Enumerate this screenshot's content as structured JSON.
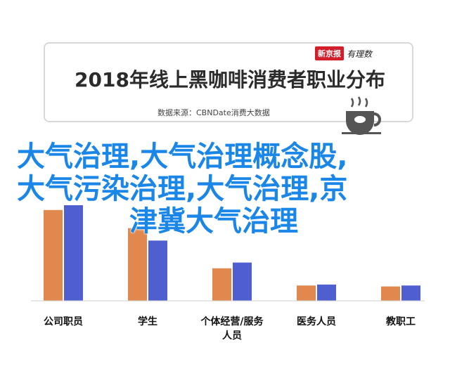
{
  "header": {
    "logo_box": "新京报",
    "logo_script": "有理数"
  },
  "watermark": {
    "line1": "大气治理,大气治理概念股,",
    "line2": "大气污染治理,大气治理,京",
    "line3": "津冀大气治理"
  },
  "chart_data": {
    "type": "bar",
    "title": "2018年线上黑咖啡消费者职业分布",
    "source": "数据来源：CBNDate消费大数据",
    "categories": [
      "公司职员",
      "学生",
      "个体经营/服务人员",
      "医务人员",
      "教职工"
    ],
    "category_lines": [
      [
        "公司职员"
      ],
      [
        "学生"
      ],
      [
        "个体经营/服务",
        "人员"
      ],
      [
        "医务人员"
      ],
      [
        "教职工"
      ]
    ],
    "series": [
      {
        "color": "#e1884e",
        "values": [
          0.95,
          0.76,
          0.34,
          0.16,
          0.15
        ]
      },
      {
        "color": "#4f5fcf",
        "values": [
          1.0,
          0.63,
          0.4,
          0.17,
          0.16
        ]
      }
    ],
    "ylim": [
      0,
      1.0
    ],
    "grid": false,
    "legend": "none"
  }
}
